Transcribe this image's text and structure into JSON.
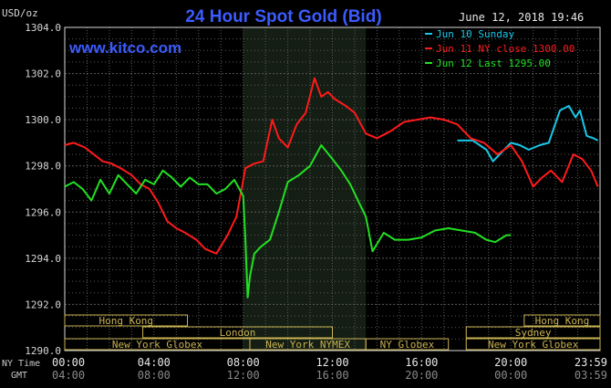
{
  "chart_data": {
    "type": "line",
    "title": "24 Hour Spot Gold (Bid)",
    "ylabel": "USD/oz",
    "watermark": "www.kitco.com",
    "timestamp": "June 12, 2018 19:46",
    "ylim": [
      1290,
      1304
    ],
    "yticks": [
      "1304.0",
      "1302.0",
      "1300.0",
      "1298.0",
      "1296.0",
      "1294.0",
      "1292.0",
      "1290.0"
    ],
    "ytick_values": [
      1304,
      1302,
      1300,
      1298,
      1296,
      1294,
      1292,
      1290
    ],
    "xlim": [
      0,
      24
    ],
    "x_units": "hours (NY time)",
    "xrow_labels": {
      "ny": "NY Time",
      "gmt": "GMT"
    },
    "xticks_ny": [
      "00:00",
      "04:00",
      "08:00",
      "12:00",
      "16:00",
      "20:00",
      "23:59"
    ],
    "xticks_gmt": [
      "04:00",
      "08:00",
      "12:00",
      "16:00",
      "20:00",
      "00:00",
      "03:59"
    ],
    "xtick_values": [
      0,
      4,
      8,
      12,
      16,
      20,
      24
    ],
    "grid": true,
    "legend_position": "top-right",
    "shaded_range": [
      8,
      13.5
    ],
    "colors": {
      "Jun 10 Sunday": "#18c8e8",
      "Jun 11 NY close 1300.00": "#ff1a1a",
      "Jun 12 Last 1295.00": "#22e022",
      "axis": "#d8d8d8",
      "grid": "#5a5a5a",
      "sessions": "#c9b250",
      "title": "#3b5bff"
    },
    "sessions": [
      {
        "name": "Hong Kong",
        "start": 0,
        "end": 5.5,
        "row": 0
      },
      {
        "name": "Hong Kong",
        "start": 20.6,
        "end": 24,
        "row": 0
      },
      {
        "name": "London",
        "start": 3.5,
        "end": 12,
        "row": 1
      },
      {
        "name": "Sydney",
        "start": 18,
        "end": 24,
        "row": 1
      },
      {
        "name": "New York Globex",
        "start": 0,
        "end": 8.3,
        "row": 2
      },
      {
        "name": "New York NYMEX",
        "start": 8.3,
        "end": 13.5,
        "row": 2
      },
      {
        "name": "NY Globex",
        "start": 13.5,
        "end": 17.2,
        "row": 2
      },
      {
        "name": "New York Globex",
        "start": 18,
        "end": 24,
        "row": 2
      }
    ],
    "series": [
      {
        "name": "Jun 10 Sunday",
        "x": [
          17.6,
          18.3,
          18.9,
          19.2,
          19.6,
          20.0,
          20.4,
          20.8,
          21.3,
          21.7,
          22.2,
          22.6,
          22.9,
          23.1,
          23.4,
          23.7,
          23.9
        ],
        "values": [
          1299.1,
          1299.1,
          1298.7,
          1298.2,
          1298.6,
          1299.0,
          1298.9,
          1298.7,
          1298.9,
          1299.0,
          1300.4,
          1300.6,
          1300.1,
          1300.4,
          1299.3,
          1299.2,
          1299.1
        ]
      },
      {
        "name": "Jun 11 NY close 1300.00",
        "x": [
          0,
          0.4,
          0.9,
          1.3,
          1.7,
          2.1,
          2.5,
          3.0,
          3.4,
          3.8,
          4.2,
          4.6,
          5.0,
          5.4,
          5.9,
          6.3,
          6.8,
          7.3,
          7.7,
          8.1,
          8.5,
          8.9,
          9.3,
          9.6,
          10.0,
          10.4,
          10.8,
          11.2,
          11.5,
          11.8,
          12.1,
          12.6,
          13.0,
          13.5,
          14.0,
          14.6,
          15.2,
          15.8,
          16.4,
          17.0,
          17.6,
          18.2,
          18.8,
          19.4,
          20.0,
          20.5,
          21.0,
          21.4,
          21.8,
          22.3,
          22.8,
          23.2,
          23.6,
          23.9
        ],
        "values": [
          1298.9,
          1299.0,
          1298.8,
          1298.5,
          1298.2,
          1298.1,
          1297.9,
          1297.6,
          1297.2,
          1297.0,
          1296.4,
          1295.6,
          1295.3,
          1295.1,
          1294.8,
          1294.4,
          1294.2,
          1295.0,
          1295.8,
          1297.9,
          1298.1,
          1298.2,
          1300.0,
          1299.2,
          1298.8,
          1299.8,
          1300.3,
          1301.8,
          1301.0,
          1301.2,
          1300.9,
          1300.6,
          1300.3,
          1299.4,
          1299.2,
          1299.5,
          1299.9,
          1300.0,
          1300.1,
          1300.0,
          1299.8,
          1299.2,
          1299.0,
          1298.5,
          1298.9,
          1298.2,
          1297.1,
          1297.5,
          1297.8,
          1297.3,
          1298.5,
          1298.3,
          1297.8,
          1297.1
        ]
      },
      {
        "name": "Jun 12 Last 1295.00",
        "x": [
          0,
          0.4,
          0.8,
          1.2,
          1.6,
          2.0,
          2.4,
          2.8,
          3.2,
          3.6,
          4.0,
          4.4,
          4.8,
          5.2,
          5.6,
          6.0,
          6.4,
          6.8,
          7.2,
          7.6,
          8.0,
          8.1,
          8.2,
          8.3,
          8.5,
          8.8,
          9.2,
          9.6,
          10.0,
          10.5,
          11.0,
          11.5,
          12.0,
          12.4,
          12.8,
          13.2,
          13.5,
          13.8,
          14.3,
          14.8,
          15.4,
          16.0,
          16.6,
          17.2,
          17.8,
          18.4,
          18.9,
          19.3,
          19.8,
          20.0
        ],
        "values": [
          1297.1,
          1297.3,
          1297.0,
          1296.5,
          1297.4,
          1296.8,
          1297.6,
          1297.2,
          1296.8,
          1297.4,
          1297.2,
          1297.8,
          1297.5,
          1297.1,
          1297.5,
          1297.2,
          1297.2,
          1296.8,
          1297.0,
          1297.4,
          1296.7,
          1294.8,
          1292.3,
          1293.2,
          1294.2,
          1294.5,
          1294.8,
          1296.0,
          1297.3,
          1297.6,
          1298.0,
          1298.9,
          1298.3,
          1297.8,
          1297.2,
          1296.4,
          1295.8,
          1294.3,
          1295.1,
          1294.8,
          1294.8,
          1294.9,
          1295.2,
          1295.3,
          1295.2,
          1295.1,
          1294.8,
          1294.7,
          1295.0,
          1295.0
        ]
      }
    ]
  }
}
